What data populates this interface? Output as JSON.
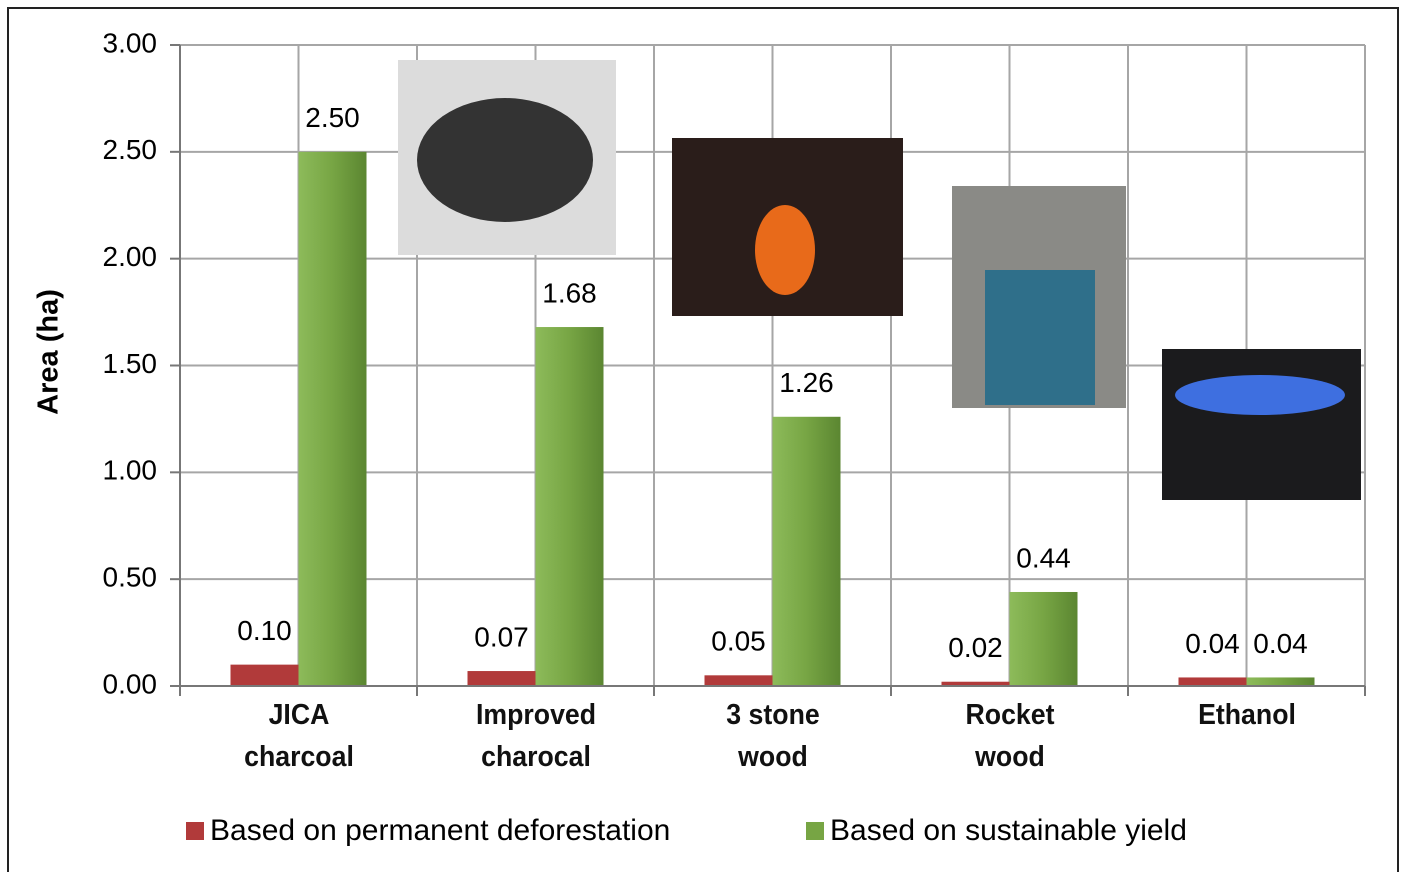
{
  "chart_data": {
    "type": "bar",
    "y_label": "Area (ha)",
    "categories": [
      "JICA charcoal",
      "Improved charocal",
      "3 stone wood",
      "Rocket wood",
      "Ethanol"
    ],
    "series": [
      {
        "name": "Based on permanent deforestation",
        "color": "#b13a3a",
        "values": [
          0.1,
          0.07,
          0.05,
          0.02,
          0.04
        ],
        "value_labels": [
          "0.10",
          "0.07",
          "0.05",
          "0.02",
          "0.04"
        ]
      },
      {
        "name": "Based on sustainable yield",
        "color": "#77a544",
        "values": [
          2.5,
          1.68,
          1.26,
          0.44,
          0.04
        ],
        "value_labels": [
          "2.50",
          "1.68",
          "1.26",
          "0.44",
          "0.04"
        ]
      }
    ],
    "ylim": [
      0,
      3
    ],
    "yticks": [
      {
        "value": 0,
        "label": "0.00"
      },
      {
        "value": 0.5,
        "label": "0.50"
      },
      {
        "value": 1,
        "label": "1.00"
      },
      {
        "value": 1.5,
        "label": "1.50"
      },
      {
        "value": 2,
        "label": "2.00"
      },
      {
        "value": 2.5,
        "label": "2.50"
      },
      {
        "value": 3,
        "label": "3.00"
      }
    ],
    "grid": true,
    "legend": "bottom"
  }
}
